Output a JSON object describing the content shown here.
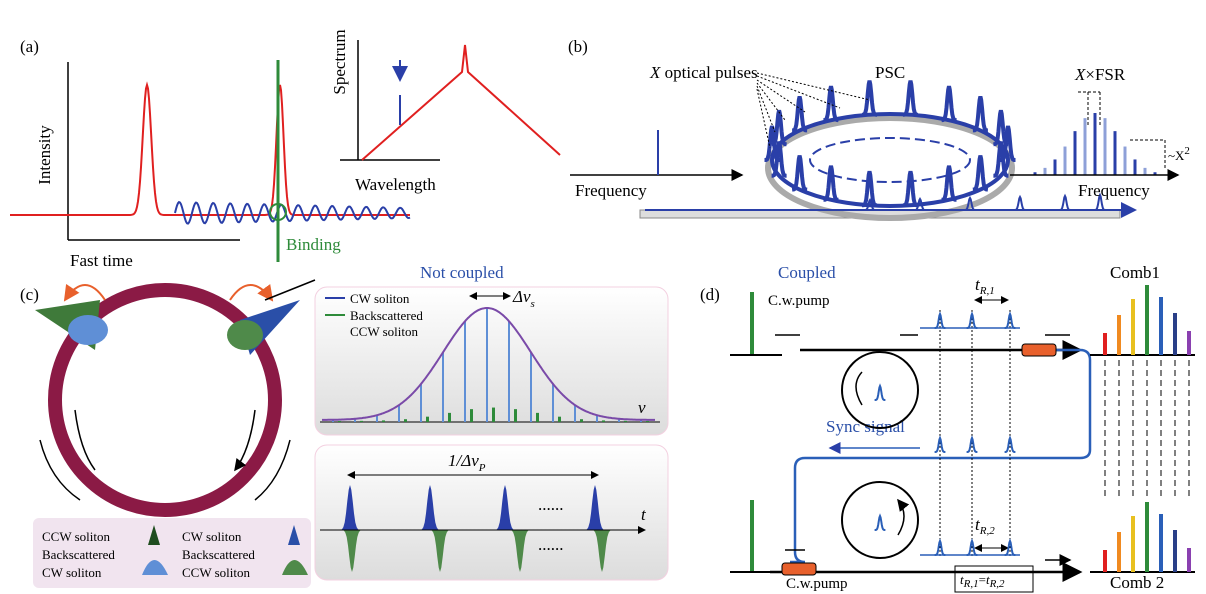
{
  "panel_a": {
    "label": "(a)",
    "y_axis": "Intensity",
    "x_axis": "Fast time",
    "binding": "Binding",
    "inset_y_axis": "Spectrum",
    "inset_x_axis": "Wavelength"
  },
  "panel_b": {
    "label": "(b)",
    "resonator": "PSC",
    "pulses_var": "X",
    "pulses_text": " optical pulses",
    "input_axis": "Frequency",
    "output_axis": "Frequency",
    "spacing_var": "X",
    "spacing_text": "×FSR",
    "scaling": "~X",
    "scaling_exp": "2"
  },
  "panel_c": {
    "label": "(c)",
    "title": "Not coupled",
    "spectrum": {
      "legend_cw": "CW soliton",
      "legend_back": [
        "Backscattered",
        "CCW soliton"
      ],
      "width_base": "Δν",
      "width_sub": "s",
      "axis": "ν"
    },
    "time": {
      "period_base": "1/Δν",
      "period_sub": "P",
      "axis": "t",
      "dots": [
        "......",
        "......"
      ]
    },
    "legend": {
      "left": [
        "CCW soliton",
        "Backscattered",
        "CW soliton"
      ],
      "right": [
        "CW soliton",
        "Backscattered",
        "CCW soliton"
      ]
    }
  },
  "panel_d": {
    "label": "(d)",
    "title": "Coupled",
    "top_comb": "Comb1",
    "bottom_comb": "Comb 2",
    "top_pump": "C.w.pump",
    "bottom_pump": "C.w.pump",
    "sync": "Sync signal",
    "t1": {
      "base": "t",
      "sub": "R,1"
    },
    "t2": {
      "base": "t",
      "sub": "R,2"
    },
    "equality": {
      "left_base": "t",
      "left_sub": "R,1",
      "eq": "=",
      "right_base": "t",
      "right_sub": "R,2"
    }
  }
}
